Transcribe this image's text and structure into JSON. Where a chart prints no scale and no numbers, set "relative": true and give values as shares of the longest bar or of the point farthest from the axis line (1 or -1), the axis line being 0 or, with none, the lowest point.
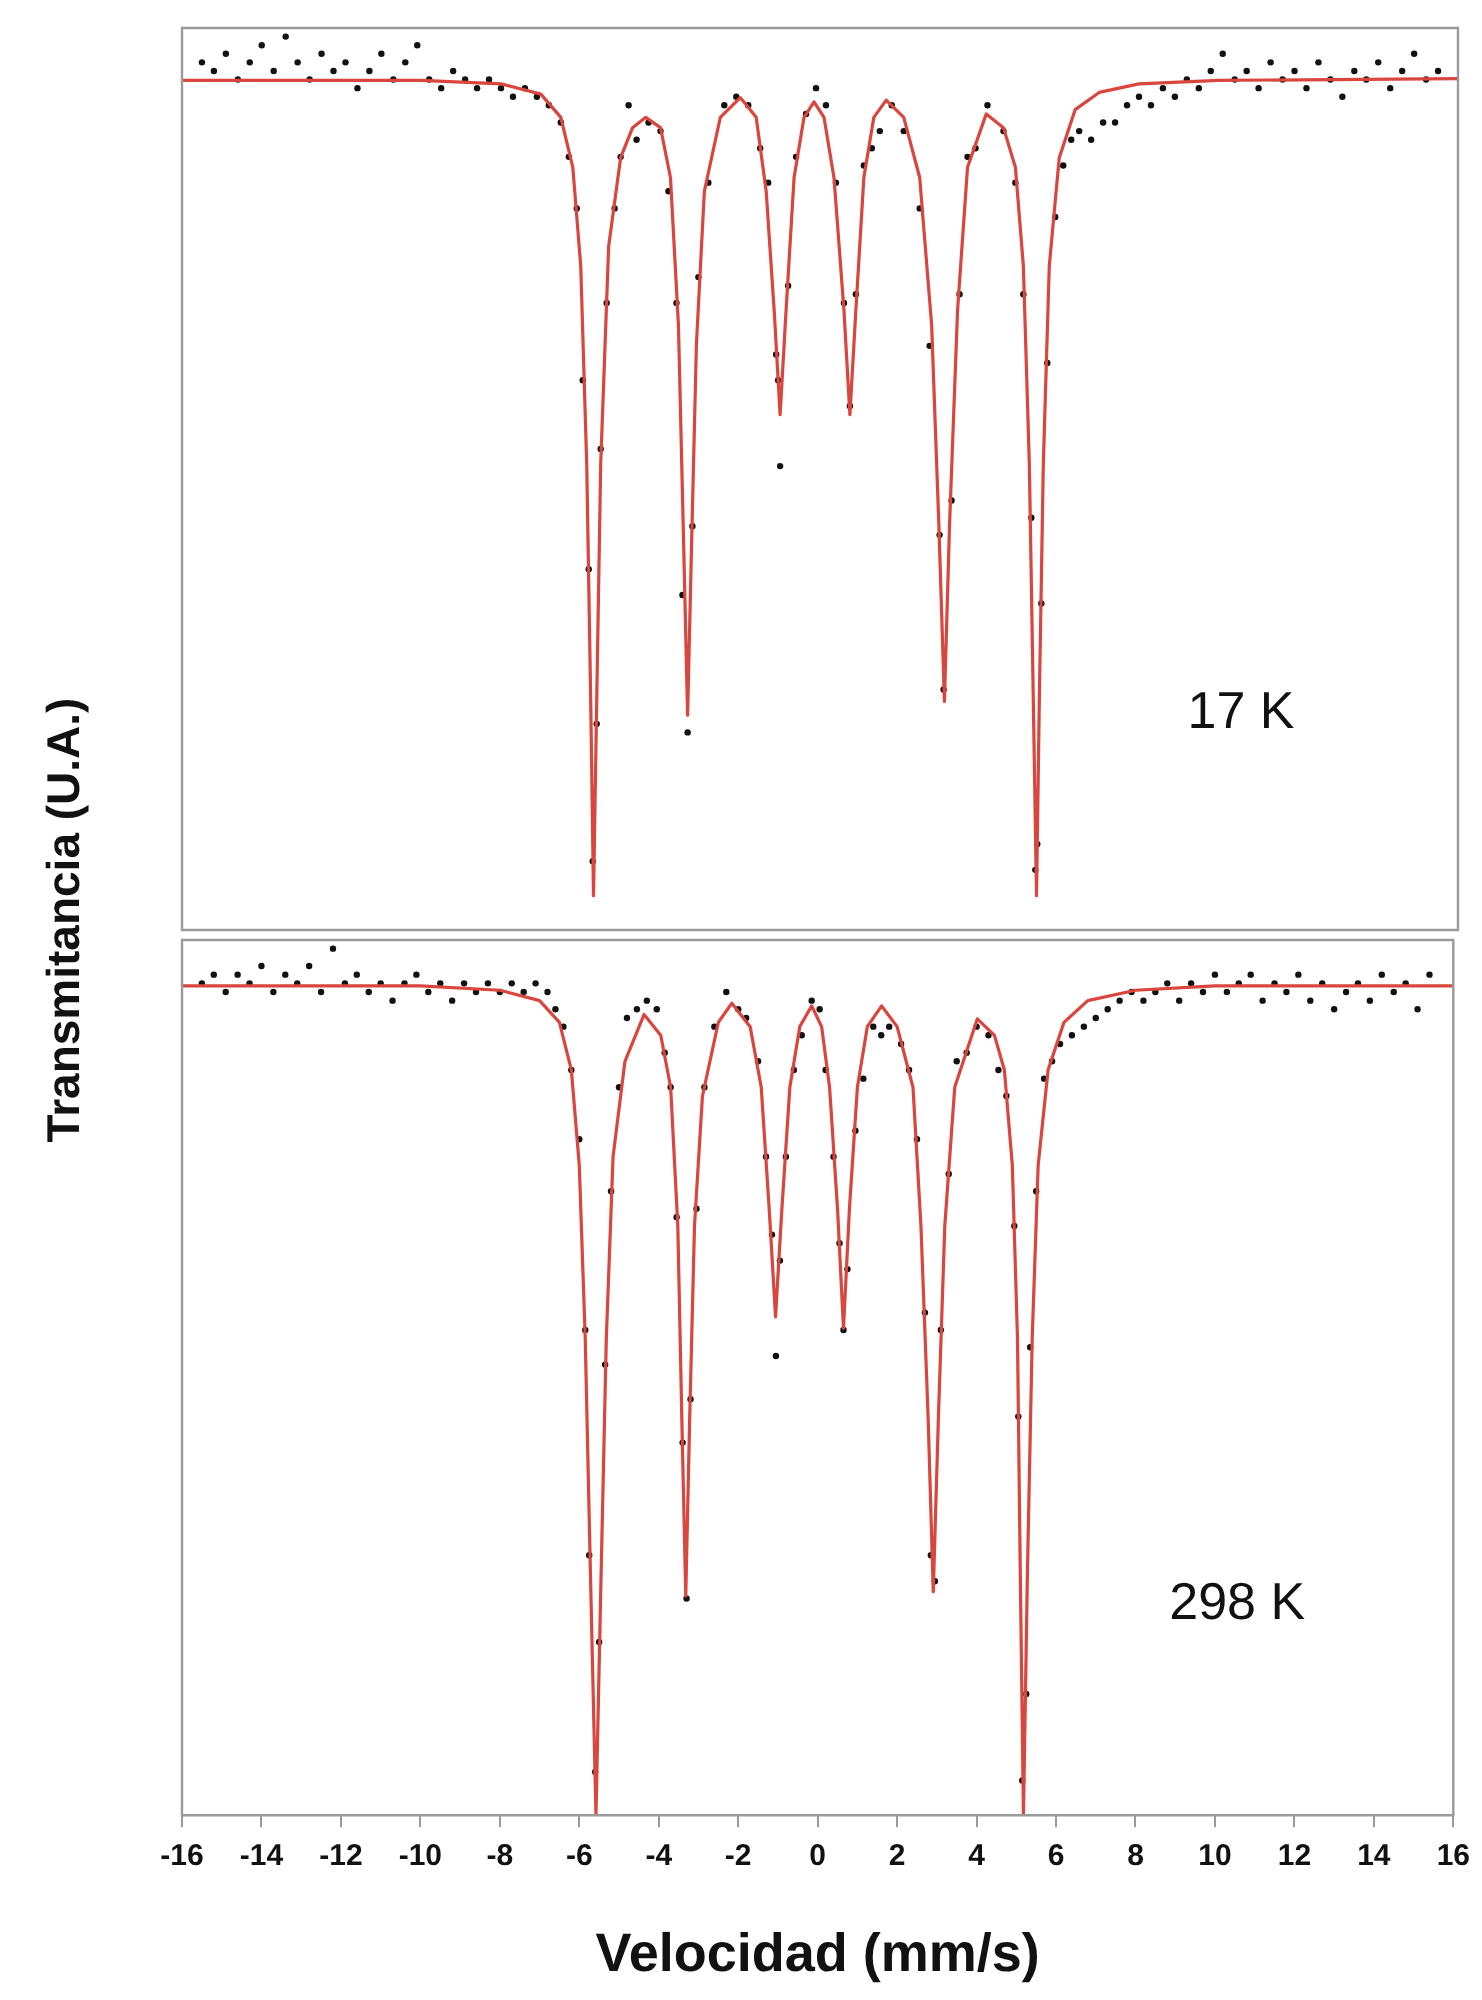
{
  "chart_data": [
    {
      "type": "scatter",
      "relative": true,
      "ylabel": "Transmitancia (U.A.)",
      "annotations": [
        "17 K"
      ],
      "xlim": [
        -16,
        16
      ],
      "xticks": [
        -16,
        -14,
        -12,
        -10,
        -8,
        -6,
        -4,
        -2,
        0,
        2,
        4,
        6,
        8,
        10,
        12,
        14,
        16
      ],
      "tick_labels": false,
      "legend": false,
      "grid": false,
      "series": [
        {
          "type": "scatter",
          "color": "#111111",
          "marker": "circle",
          "x": [
            -15.5,
            -15.2,
            -14.9,
            -14.6,
            -14.3,
            -14.0,
            -13.7,
            -13.4,
            -13.1,
            -12.8,
            -12.5,
            -12.2,
            -11.9,
            -11.6,
            -11.3,
            -11.0,
            -10.7,
            -10.4,
            -10.1,
            -9.8,
            -9.5,
            -9.2,
            -8.9,
            -8.6,
            -8.3,
            -8.0,
            -7.7,
            -7.4,
            -7.1,
            -6.8,
            -6.5,
            -6.3,
            -6.1,
            -5.95,
            -5.8,
            -5.7,
            -5.6,
            -5.5,
            -5.35,
            -5.15,
            -5.0,
            -4.8,
            -4.6,
            -4.3,
            -4.0,
            -3.8,
            -3.6,
            -3.45,
            -3.32,
            -3.2,
            -3.05,
            -2.8,
            -2.4,
            -2.1,
            -1.8,
            -1.5,
            -1.3,
            -1.1,
            -1.05,
            -1.0,
            -0.8,
            -0.6,
            -0.35,
            -0.1,
            0.15,
            0.4,
            0.6,
            0.75,
            0.9,
            1.1,
            1.3,
            1.5,
            1.8,
            2.1,
            2.5,
            2.75,
            3.0,
            3.1,
            3.3,
            3.5,
            3.7,
            3.9,
            4.2,
            4.6,
            4.9,
            5.1,
            5.3,
            5.4,
            5.45,
            5.55,
            5.7,
            5.9,
            6.1,
            6.3,
            6.5,
            6.8,
            7.1,
            7.4,
            7.7,
            8.0,
            8.3,
            8.6,
            8.9,
            9.2,
            9.5,
            9.8,
            10.1,
            10.4,
            10.7,
            11.0,
            11.3,
            11.6,
            11.9,
            12.2,
            12.5,
            12.8,
            13.1,
            13.4,
            13.7,
            14.0,
            14.3,
            14.6,
            14.9,
            15.2,
            15.5
          ],
          "values": [
            0.97,
            0.96,
            0.98,
            0.95,
            0.97,
            0.99,
            0.96,
            1.0,
            0.97,
            0.95,
            0.98,
            0.96,
            0.97,
            0.94,
            0.96,
            0.98,
            0.95,
            0.97,
            0.99,
            0.95,
            0.94,
            0.96,
            0.95,
            0.94,
            0.95,
            0.94,
            0.93,
            0.94,
            0.93,
            0.92,
            0.9,
            0.86,
            0.8,
            0.6,
            0.38,
            0.04,
            0.2,
            0.52,
            0.69,
            0.8,
            0.86,
            0.92,
            0.88,
            0.9,
            0.89,
            0.82,
            0.69,
            0.35,
            0.19,
            0.43,
            0.72,
            0.83,
            0.92,
            0.93,
            0.92,
            0.87,
            0.83,
            0.63,
            0.6,
            0.5,
            0.71,
            0.86,
            0.91,
            0.94,
            0.92,
            0.83,
            0.69,
            0.57,
            0.7,
            0.85,
            0.87,
            0.89,
            0.92,
            0.89,
            0.8,
            0.64,
            0.42,
            0.24,
            0.46,
            0.7,
            0.86,
            0.87,
            0.92,
            0.89,
            0.83,
            0.7,
            0.44,
            0.03,
            0.06,
            0.34,
            0.62,
            0.79,
            0.85,
            0.88,
            0.89,
            0.88,
            0.9,
            0.9,
            0.92,
            0.93,
            0.92,
            0.94,
            0.93,
            0.95,
            0.94,
            0.96,
            0.98,
            0.95,
            0.96,
            0.94,
            0.97,
            0.95,
            0.96,
            0.94,
            0.97,
            0.95,
            0.93,
            0.96,
            0.95,
            0.97,
            0.94,
            0.96,
            0.98,
            0.95,
            0.96
          ]
        },
        {
          "type": "line",
          "color": "#d8463e",
          "marker": "none",
          "line_style": "solid",
          "x": [
            -16,
            -10,
            -8,
            -7,
            -6.5,
            -6.2,
            -6.0,
            -5.85,
            -5.75,
            -5.68,
            -5.6,
            -5.5,
            -5.3,
            -5.0,
            -4.7,
            -4.37,
            -4.0,
            -3.75,
            -3.55,
            -3.42,
            -3.32,
            -3.22,
            -3.1,
            -2.9,
            -2.5,
            -2.0,
            -1.6,
            -1.35,
            -1.15,
            -1.0,
            -0.85,
            -0.65,
            -0.4,
            -0.15,
            0.1,
            0.35,
            0.6,
            0.75,
            0.9,
            1.1,
            1.35,
            1.66,
            2.1,
            2.5,
            2.8,
            2.98,
            3.12,
            3.25,
            3.45,
            3.7,
            4.17,
            4.6,
            4.9,
            5.1,
            5.25,
            5.35,
            5.43,
            5.5,
            5.6,
            5.75,
            6.0,
            6.4,
            7,
            8,
            10,
            16
          ],
          "values": [
            0.949,
            0.949,
            0.945,
            0.933,
            0.906,
            0.848,
            0.733,
            0.502,
            0.226,
            0,
            0.226,
            0.502,
            0.756,
            0.859,
            0.894,
            0.906,
            0.894,
            0.836,
            0.664,
            0.41,
            0.21,
            0.41,
            0.641,
            0.82,
            0.906,
            0.929,
            0.906,
            0.82,
            0.682,
            0.56,
            0.682,
            0.836,
            0.906,
            0.924,
            0.906,
            0.836,
            0.682,
            0.56,
            0.682,
            0.836,
            0.906,
            0.926,
            0.906,
            0.836,
            0.664,
            0.433,
            0.226,
            0.433,
            0.682,
            0.848,
            0.91,
            0.894,
            0.848,
            0.733,
            0.502,
            0.226,
            0,
            0.226,
            0.502,
            0.733,
            0.859,
            0.915,
            0.935,
            0.945,
            0.949,
            0.951
          ]
        }
      ]
    },
    {
      "type": "scatter",
      "relative": true,
      "xlabel": "Velocidad (mm/s)",
      "annotations": [
        "298 K"
      ],
      "xlim": [
        -16,
        16
      ],
      "xticks": [
        -16,
        -14,
        -12,
        -10,
        -8,
        -6,
        -4,
        -2,
        0,
        2,
        4,
        6,
        8,
        10,
        12,
        14,
        16
      ],
      "tick_labels": "x",
      "legend": false,
      "grid": false,
      "series": [
        {
          "type": "scatter",
          "color": "#111111",
          "marker": "circle",
          "x": [
            -15.5,
            -15.2,
            -14.9,
            -14.6,
            -14.3,
            -14.0,
            -13.7,
            -13.4,
            -13.1,
            -12.8,
            -12.5,
            -12.2,
            -11.9,
            -11.6,
            -11.3,
            -11.0,
            -10.7,
            -10.4,
            -10.1,
            -9.8,
            -9.5,
            -9.2,
            -8.9,
            -8.6,
            -8.3,
            -8.0,
            -7.7,
            -7.4,
            -7.1,
            -6.8,
            -6.6,
            -6.4,
            -6.2,
            -6.0,
            -5.85,
            -5.75,
            -5.6,
            -5.5,
            -5.35,
            -5.2,
            -5.0,
            -4.8,
            -4.55,
            -4.3,
            -4.05,
            -3.85,
            -3.7,
            -3.55,
            -3.4,
            -3.3,
            -3.2,
            -3.05,
            -2.85,
            -2.6,
            -2.3,
            -2.0,
            -1.8,
            -1.5,
            -1.3,
            -1.15,
            -1.05,
            -0.95,
            -0.8,
            -0.6,
            -0.4,
            -0.15,
            0.05,
            0.2,
            0.4,
            0.55,
            0.65,
            0.75,
            0.95,
            1.15,
            1.4,
            1.6,
            1.8,
            2.1,
            2.3,
            2.5,
            2.7,
            2.85,
            2.95,
            3.1,
            3.3,
            3.5,
            3.75,
            4.0,
            4.3,
            4.55,
            4.75,
            4.95,
            5.05,
            5.15,
            5.25,
            5.35,
            5.5,
            5.7,
            5.9,
            6.1,
            6.4,
            6.7,
            7.0,
            7.3,
            7.6,
            7.9,
            8.2,
            8.5,
            8.8,
            9.1,
            9.4,
            9.7,
            10.0,
            10.3,
            10.6,
            10.9,
            11.2,
            11.5,
            11.8,
            12.1,
            12.4,
            12.7,
            13.0,
            13.3,
            13.6,
            13.9,
            14.2,
            14.5,
            14.8,
            15.1,
            15.4
          ],
          "values": [
            0.96,
            0.97,
            0.95,
            0.97,
            0.96,
            0.98,
            0.95,
            0.97,
            0.96,
            0.98,
            0.95,
            1.0,
            0.96,
            0.97,
            0.95,
            0.96,
            0.94,
            0.96,
            0.97,
            0.95,
            0.96,
            0.94,
            0.96,
            0.95,
            0.96,
            0.95,
            0.96,
            0.95,
            0.96,
            0.95,
            0.93,
            0.91,
            0.86,
            0.78,
            0.56,
            0.3,
            0.05,
            0.2,
            0.52,
            0.72,
            0.84,
            0.92,
            0.93,
            0.94,
            0.93,
            0.88,
            0.84,
            0.69,
            0.43,
            0.25,
            0.48,
            0.7,
            0.84,
            0.91,
            0.95,
            0.93,
            0.92,
            0.87,
            0.76,
            0.67,
            0.53,
            0.64,
            0.76,
            0.86,
            0.9,
            0.94,
            0.93,
            0.86,
            0.76,
            0.66,
            0.56,
            0.63,
            0.79,
            0.85,
            0.91,
            0.9,
            0.91,
            0.89,
            0.86,
            0.78,
            0.58,
            0.3,
            0.27,
            0.56,
            0.74,
            0.87,
            0.88,
            0.91,
            0.9,
            0.86,
            0.83,
            0.68,
            0.46,
            0.04,
            0.14,
            0.54,
            0.72,
            0.85,
            0.87,
            0.89,
            0.9,
            0.91,
            0.92,
            0.93,
            0.94,
            0.95,
            0.94,
            0.95,
            0.96,
            0.94,
            0.96,
            0.95,
            0.97,
            0.95,
            0.96,
            0.97,
            0.94,
            0.96,
            0.95,
            0.97,
            0.94,
            0.96,
            0.93,
            0.95,
            0.96,
            0.94,
            0.97,
            0.95,
            0.96,
            0.93,
            0.97
          ]
        },
        {
          "type": "line",
          "color": "#d8463e",
          "marker": "none",
          "line_style": "solid",
          "x": [
            -16,
            -10,
            -8,
            -7,
            -6.5,
            -6.2,
            -6.0,
            -5.85,
            -5.72,
            -5.58,
            -5.45,
            -5.32,
            -5.15,
            -4.85,
            -4.37,
            -3.95,
            -3.7,
            -3.52,
            -3.42,
            -3.32,
            -3.22,
            -3.1,
            -2.9,
            -2.5,
            -2.16,
            -1.7,
            -1.42,
            -1.22,
            -1.06,
            -0.9,
            -0.7,
            -0.45,
            -0.15,
            0.1,
            0.3,
            0.5,
            0.65,
            0.8,
            1.0,
            1.25,
            1.61,
            2.0,
            2.4,
            2.6,
            2.78,
            2.91,
            3.04,
            3.2,
            3.45,
            4.02,
            4.45,
            4.7,
            4.9,
            5.03,
            5.1,
            5.18,
            5.28,
            5.4,
            5.55,
            5.8,
            6.2,
            6.8,
            8,
            10,
            16
          ],
          "values": [
            0.957,
            0.957,
            0.952,
            0.94,
            0.915,
            0.86,
            0.75,
            0.55,
            0.28,
            0,
            0.28,
            0.55,
            0.76,
            0.87,
            0.924,
            0.9,
            0.84,
            0.68,
            0.46,
            0.253,
            0.46,
            0.68,
            0.83,
            0.915,
            0.937,
            0.91,
            0.84,
            0.7,
            0.575,
            0.7,
            0.84,
            0.91,
            0.934,
            0.91,
            0.84,
            0.7,
            0.562,
            0.7,
            0.84,
            0.91,
            0.934,
            0.91,
            0.84,
            0.68,
            0.46,
            0.258,
            0.46,
            0.68,
            0.84,
            0.919,
            0.9,
            0.86,
            0.75,
            0.55,
            0.28,
            0,
            0.28,
            0.55,
            0.75,
            0.86,
            0.915,
            0.94,
            0.952,
            0.957,
            0.957
          ]
        }
      ]
    }
  ]
}
